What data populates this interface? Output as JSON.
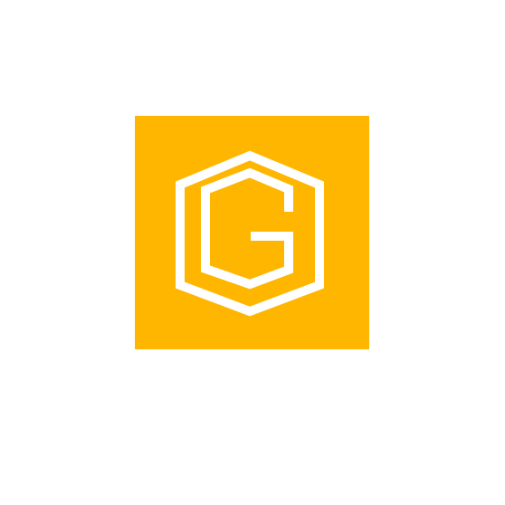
{
  "icon": {
    "semantic": "hexagon-logo-icon",
    "background_color": "#FFB600",
    "foreground_color": "#FFFFFF"
  }
}
